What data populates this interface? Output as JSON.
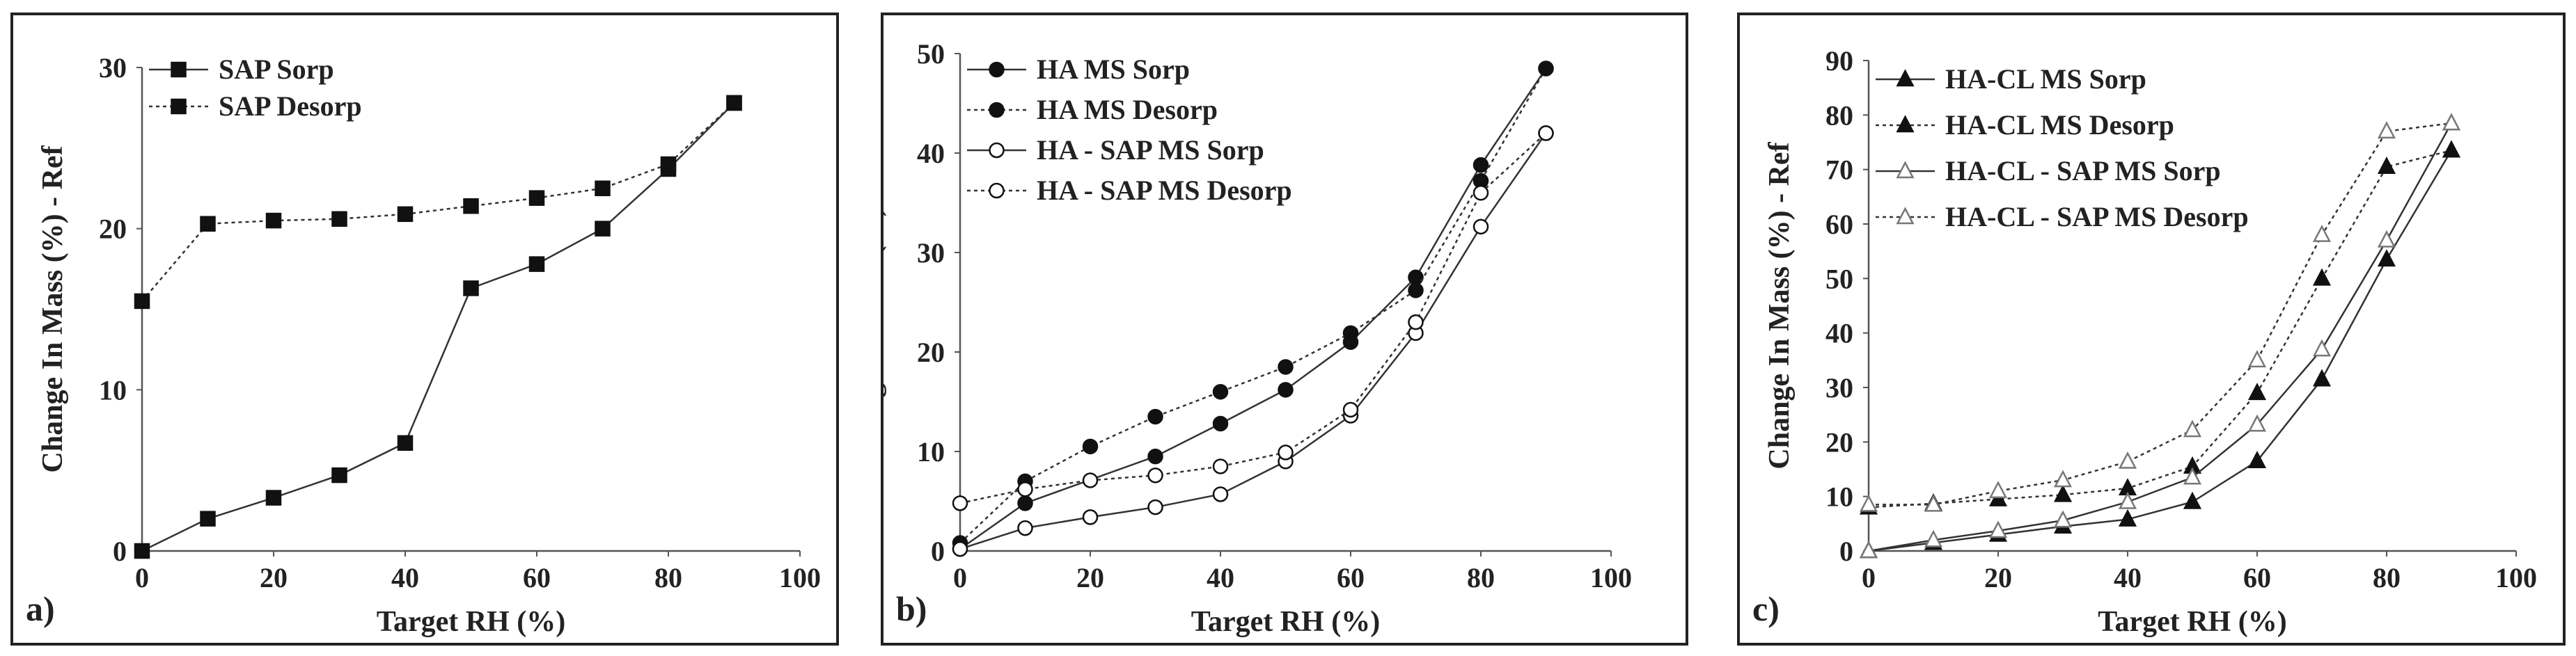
{
  "chart_data": [
    {
      "type": "line",
      "panel_label": "a)",
      "xlabel": "Target RH (%)",
      "ylabel": "Change In Mass (%) - Ref",
      "xlim": [
        0,
        100
      ],
      "ylim": [
        0,
        30
      ],
      "xticks": [
        0,
        20,
        40,
        60,
        80,
        100
      ],
      "yticks": [
        0,
        10,
        20,
        30
      ],
      "legend_position": "top-left",
      "series": [
        {
          "name": "SAP Sorp",
          "marker": "square",
          "fill": "filled",
          "line": "solid",
          "x": [
            0,
            10,
            20,
            30,
            40,
            50,
            60,
            70,
            80,
            90
          ],
          "y": [
            0,
            2.0,
            3.3,
            4.7,
            6.7,
            16.3,
            17.8,
            20.0,
            23.7,
            27.8
          ]
        },
        {
          "name": "SAP Desorp",
          "marker": "square",
          "fill": "filled",
          "line": "dotted",
          "x": [
            0,
            10,
            20,
            30,
            40,
            50,
            60,
            70,
            80,
            90
          ],
          "y": [
            15.5,
            20.3,
            20.5,
            20.6,
            20.9,
            21.4,
            21.9,
            22.5,
            24.0,
            27.8
          ]
        }
      ]
    },
    {
      "type": "line",
      "panel_label": "b)",
      "xlabel": "Target RH (%)",
      "ylabel": "Change In Mass (%) - Ref",
      "xlim": [
        0,
        100
      ],
      "ylim": [
        0,
        50
      ],
      "xticks": [
        0,
        20,
        40,
        60,
        80,
        100
      ],
      "yticks": [
        0,
        10,
        20,
        30,
        40,
        50
      ],
      "legend_position": "top-left",
      "series": [
        {
          "name": "HA MS Sorp",
          "marker": "circle",
          "fill": "filled",
          "line": "solid",
          "x": [
            0,
            10,
            30,
            40,
            50,
            60,
            70,
            80,
            90
          ],
          "y": [
            0.2,
            4.8,
            9.5,
            12.8,
            16.2,
            21.0,
            27.5,
            38.8,
            48.5
          ]
        },
        {
          "name": "HA MS Desorp",
          "marker": "circle",
          "fill": "filled",
          "line": "dotted",
          "x": [
            0,
            10,
            20,
            30,
            40,
            50,
            60,
            70,
            80,
            90
          ],
          "y": [
            0.8,
            7.0,
            10.5,
            13.5,
            16.0,
            18.5,
            21.9,
            26.2,
            37.2,
            48.5
          ]
        },
        {
          "name": "HA - SAP MS Sorp",
          "marker": "circle",
          "fill": "open",
          "line": "solid",
          "x": [
            0,
            10,
            20,
            30,
            40,
            50,
            60,
            70,
            80,
            90
          ],
          "y": [
            0.2,
            2.3,
            3.4,
            4.4,
            5.7,
            9.0,
            13.6,
            21.9,
            32.6,
            42.0
          ]
        },
        {
          "name": "HA - SAP MS Desorp",
          "marker": "circle",
          "fill": "open",
          "line": "dotted",
          "x": [
            0,
            10,
            20,
            30,
            40,
            50,
            60,
            70,
            80,
            90
          ],
          "y": [
            4.8,
            6.2,
            7.1,
            7.6,
            8.5,
            9.9,
            14.2,
            23.0,
            36.0,
            42.0
          ]
        }
      ]
    },
    {
      "type": "line",
      "panel_label": "c)",
      "xlabel": "Target RH (%)",
      "ylabel": "Change In Mass (%) - Ref",
      "xlim": [
        0,
        100
      ],
      "ylim": [
        0,
        90
      ],
      "xticks": [
        0,
        20,
        40,
        60,
        80,
        100
      ],
      "yticks": [
        0,
        10,
        20,
        30,
        40,
        50,
        60,
        70,
        80,
        90
      ],
      "legend_position": "top-left",
      "series": [
        {
          "name": "HA-CL MS Sorp",
          "marker": "triangle",
          "fill": "filled",
          "line": "solid",
          "x": [
            0,
            10,
            20,
            30,
            40,
            50,
            60,
            70,
            80,
            90
          ],
          "y": [
            0,
            1.5,
            3.0,
            4.5,
            5.8,
            9.0,
            16.5,
            31.5,
            53.5,
            73.5
          ]
        },
        {
          "name": "HA-CL MS Desorp",
          "marker": "triangle",
          "fill": "filled",
          "line": "dotted",
          "x": [
            0,
            10,
            20,
            30,
            40,
            50,
            60,
            70,
            80,
            90
          ],
          "y": [
            8.0,
            8.7,
            9.5,
            10.3,
            11.5,
            15.5,
            29.0,
            50.0,
            70.5,
            73.5
          ]
        },
        {
          "name": "HA-CL - SAP MS Sorp",
          "marker": "triangle",
          "fill": "open",
          "line": "solid",
          "x": [
            0,
            10,
            20,
            30,
            40,
            50,
            60,
            70,
            80,
            90
          ],
          "y": [
            0,
            2.0,
            3.7,
            5.6,
            9.0,
            13.5,
            23.2,
            37.0,
            57.0,
            78.5
          ]
        },
        {
          "name": "HA-CL - SAP MS Desorp",
          "marker": "triangle",
          "fill": "open",
          "line": "dotted",
          "x": [
            0,
            10,
            20,
            30,
            40,
            50,
            60,
            70,
            80,
            90
          ],
          "y": [
            8.5,
            8.5,
            11.0,
            13.0,
            16.4,
            22.2,
            35.0,
            58.0,
            77.0,
            78.5
          ]
        }
      ]
    }
  ]
}
